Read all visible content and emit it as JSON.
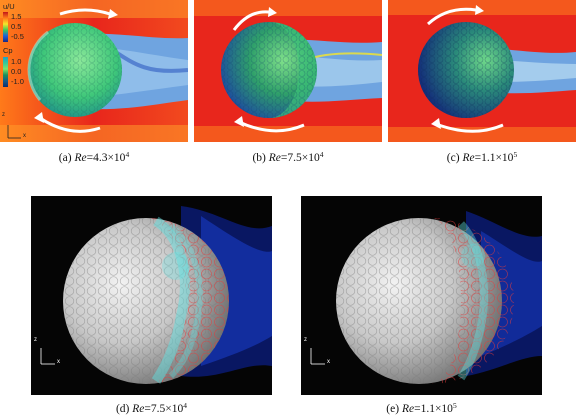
{
  "figure": {
    "top_row": {
      "legend": {
        "velocity_title": "u/U",
        "velocity_ticks": [
          "1.5",
          "0.5",
          "-0.5"
        ],
        "pressure_title": "Cp",
        "pressure_ticks": [
          "1.0",
          "0.0",
          "-1.0"
        ],
        "velocity_colors": [
          "#c0161a",
          "#ff7a1a",
          "#f6e62a",
          "#3fc95a",
          "#1f5fd6",
          "#1b2a86"
        ],
        "pressure_colors": [
          "#1fa0c8",
          "#37c89a",
          "#7fe36a",
          "#1e8f5a",
          "#145a88",
          "#0d2f6e"
        ]
      },
      "axis_z": "z",
      "axis_x": "x",
      "panels": [
        {
          "label": "(a) ",
          "re": "Re",
          "value": "=4.3×10",
          "exp": "4"
        },
        {
          "label": "(b) ",
          "re": "Re",
          "value": "=7.5×10",
          "exp": "4"
        },
        {
          "label": "(c) ",
          "re": "Re",
          "value": "=1.1×10",
          "exp": "5"
        }
      ]
    },
    "bottom_row": {
      "axis_z": "z",
      "axis_x": "x",
      "panels": [
        {
          "label": "(d) ",
          "re": "Re",
          "value": "=7.5×10",
          "exp": "4"
        },
        {
          "label": "(e) ",
          "re": "Re",
          "value": "=1.1×10",
          "exp": "5"
        }
      ]
    },
    "colors": {
      "flow_hot": "#e8261c",
      "flow_orange": "#ff8a1e",
      "wake_blue": "#4f8ed6",
      "sphere_green": "#3fc77a",
      "sphere_blue": "#1c4aa0",
      "dark_bg": "#050505",
      "ball_grey": "#c9c9c9",
      "vortex_cyan": "#5fe6e6",
      "vortex_red": "#e23a3a"
    }
  }
}
